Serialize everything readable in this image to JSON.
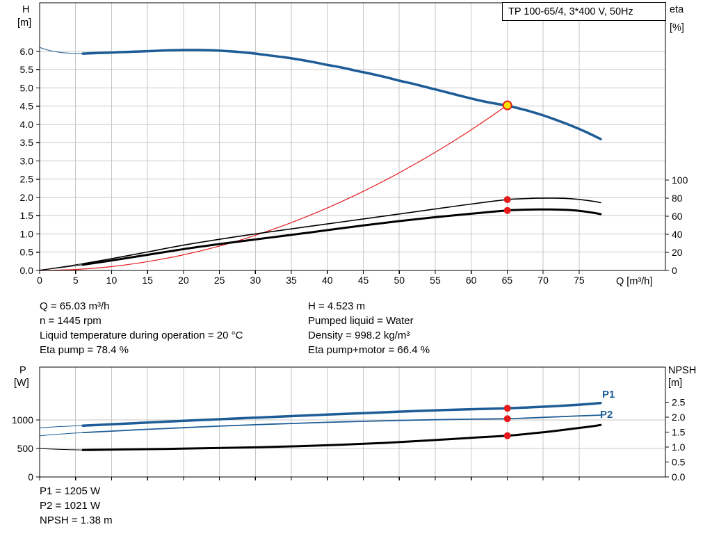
{
  "header": {
    "title": "TP 100-65/4, 3*400 V, 50Hz"
  },
  "colors": {
    "curve_blue": "#1d5c96",
    "curve_black": "#000000",
    "marker_red": "#e41a1c",
    "duty_yellow": "#ffe200",
    "grid": "#c6c6c6",
    "axis": "#000000"
  },
  "info_top": {
    "left": [
      "Q = 65.03 m³/h",
      "n = 1445 rpm",
      "Liquid temperature during operation = 20 °C",
      "Eta pump = 78.4 %"
    ],
    "right": [
      "H = 4.523 m",
      "Pumped liquid = Water",
      "Density = 998.2 kg/m³",
      "Eta pump+motor = 66.4 %"
    ]
  },
  "info_bottom": [
    "P1 = 1205 W",
    "P2 = 1021 W",
    "NPSH = 1.38 m"
  ],
  "chart_data": [
    {
      "id": "hq-eta-chart",
      "type": "line",
      "title": "TP 100-65/4, 3*400 V, 50Hz",
      "x_axis": {
        "label": "Q [m³/h]",
        "min": 0,
        "max": 87,
        "grid": true,
        "tick_values": [
          0,
          5,
          10,
          15,
          20,
          25,
          30,
          35,
          40,
          45,
          50,
          55,
          60,
          65,
          70,
          75
        ],
        "tick_labels": [
          "0",
          "5",
          "10",
          "15",
          "20",
          "25",
          "30",
          "35",
          "40",
          "45",
          "50",
          "55",
          "60",
          "65",
          "70",
          "75"
        ]
      },
      "y_left": {
        "title_lines": [
          "H",
          "[m]"
        ],
        "min": 0,
        "max": 7.333,
        "grid": true,
        "tick_values": [
          0,
          0.5,
          1,
          1.5,
          2,
          2.5,
          3,
          3.5,
          4,
          4.5,
          5,
          5.5,
          6
        ],
        "tick_labels": [
          "0.0",
          "0.5",
          "1.0",
          "1.5",
          "2.0",
          "2.5",
          "3.0",
          "3.5",
          "4.0",
          "4.5",
          "5.0",
          "5.5",
          "6.0"
        ]
      },
      "y_right": {
        "title_lines": [
          "eta",
          "[%]"
        ],
        "min": 0,
        "max": 296.2,
        "grid": false,
        "tick_values": [
          0,
          20,
          40,
          60,
          80,
          100
        ],
        "tick_labels": [
          "0",
          "20",
          "40",
          "60",
          "80",
          "100"
        ]
      },
      "series": [
        {
          "name": "head-lead-in",
          "axis": "left",
          "color": "#1d5c96",
          "width": 1,
          "points": [
            [
              0,
              6.11
            ],
            [
              1.5,
              6.02
            ],
            [
              3,
              5.97
            ],
            [
              4.5,
              5.95
            ],
            [
              6,
              5.94
            ]
          ]
        },
        {
          "name": "head",
          "axis": "left",
          "color": "#1d5c96",
          "width": 3.5,
          "points": [
            [
              6,
              5.94
            ],
            [
              8,
              5.955
            ],
            [
              10,
              5.97
            ],
            [
              12,
              5.985
            ],
            [
              14,
              6.0
            ],
            [
              16,
              6.015
            ],
            [
              18,
              6.03
            ],
            [
              20,
              6.04
            ],
            [
              22,
              6.04
            ],
            [
              24,
              6.03
            ],
            [
              26,
              6.01
            ],
            [
              28,
              5.98
            ],
            [
              30,
              5.94
            ],
            [
              32,
              5.89
            ],
            [
              34,
              5.84
            ],
            [
              36,
              5.78
            ],
            [
              38,
              5.71
            ],
            [
              40,
              5.63
            ],
            [
              42,
              5.56
            ],
            [
              44,
              5.47
            ],
            [
              46,
              5.39
            ],
            [
              48,
              5.3
            ],
            [
              50,
              5.2
            ],
            [
              52,
              5.11
            ],
            [
              54,
              5.01
            ],
            [
              56,
              4.91
            ],
            [
              58,
              4.81
            ],
            [
              60,
              4.71
            ],
            [
              62,
              4.62
            ],
            [
              64,
              4.55
            ],
            [
              65,
              4.52
            ],
            [
              66,
              4.47
            ],
            [
              68,
              4.37
            ],
            [
              70,
              4.25
            ],
            [
              72,
              4.11
            ],
            [
              74,
              3.96
            ],
            [
              76,
              3.79
            ],
            [
              78,
              3.6
            ]
          ]
        },
        {
          "name": "resistance",
          "axis": "left",
          "color": "#e41a1c",
          "width": 1.2,
          "points": [
            [
              0,
              0
            ],
            [
              5,
              0.027
            ],
            [
              10,
              0.107
            ],
            [
              15,
              0.241
            ],
            [
              20,
              0.428
            ],
            [
              25,
              0.669
            ],
            [
              30,
              0.963
            ],
            [
              35,
              1.311
            ],
            [
              40,
              1.713
            ],
            [
              45,
              2.168
            ],
            [
              50,
              2.676
            ],
            [
              55,
              3.238
            ],
            [
              60,
              3.854
            ],
            [
              65,
              4.523
            ]
          ]
        },
        {
          "name": "eta-pump-lead-in",
          "axis": "right",
          "color": "#000000",
          "width": 1,
          "points": [
            [
              0,
              0.3
            ],
            [
              2,
              2.6
            ],
            [
              4,
              5.0
            ],
            [
              6,
              7.5
            ]
          ]
        },
        {
          "name": "eta-pump",
          "axis": "right",
          "color": "#000000",
          "width": 1.6,
          "points": [
            [
              6,
              7.5
            ],
            [
              10,
              13
            ],
            [
              15,
              20.5
            ],
            [
              20,
              28
            ],
            [
              25,
              34.5
            ],
            [
              30,
              40.5
            ],
            [
              35,
              46
            ],
            [
              40,
              51.5
            ],
            [
              45,
              57
            ],
            [
              50,
              62.5
            ],
            [
              55,
              68
            ],
            [
              60,
              73.5
            ],
            [
              65,
              78.4
            ],
            [
              67,
              79.3
            ],
            [
              69,
              79.9
            ],
            [
              71,
              80.1
            ],
            [
              73,
              79.8
            ],
            [
              75,
              78.6
            ],
            [
              77,
              76.5
            ],
            [
              78,
              75
            ]
          ]
        },
        {
          "name": "eta-pump-motor-lead-in",
          "axis": "right",
          "color": "#000000",
          "width": 1,
          "points": [
            [
              0,
              0.3
            ],
            [
              2,
              2.2
            ],
            [
              4,
              4.2
            ],
            [
              6,
              6.3
            ]
          ]
        },
        {
          "name": "eta-pump-motor",
          "axis": "right",
          "color": "#000000",
          "width": 3,
          "points": [
            [
              6,
              6.3
            ],
            [
              10,
              11
            ],
            [
              15,
              17.3
            ],
            [
              20,
              23.6
            ],
            [
              25,
              29.2
            ],
            [
              30,
              34.3
            ],
            [
              35,
              39.4
            ],
            [
              40,
              44.6
            ],
            [
              45,
              49.8
            ],
            [
              50,
              54.6
            ],
            [
              55,
              58.9
            ],
            [
              60,
              62.8
            ],
            [
              65,
              66.4
            ],
            [
              67,
              67.1
            ],
            [
              69,
              67.5
            ],
            [
              71,
              67.5
            ],
            [
              73,
              67.1
            ],
            [
              75,
              66
            ],
            [
              77,
              63.8
            ],
            [
              78,
              62.3
            ]
          ]
        }
      ],
      "markers": [
        {
          "name": "duty-point",
          "axis": "left",
          "x": 65.03,
          "y": 4.523,
          "r": 6,
          "fill": "#ffe200",
          "stroke": "#e41a1c",
          "stroke_width": 2
        },
        {
          "name": "eta-pump-point",
          "axis": "right",
          "x": 65.03,
          "y": 78.4,
          "r": 5,
          "fill": "#e41a1c"
        },
        {
          "name": "eta-pump-motor-point",
          "axis": "right",
          "x": 65.03,
          "y": 66.4,
          "r": 5,
          "fill": "#e41a1c"
        }
      ]
    },
    {
      "id": "power-npsh-chart",
      "type": "line",
      "x_axis": {
        "label": "",
        "min": 0,
        "max": 87,
        "grid": true,
        "tick_values": [
          0,
          5,
          10,
          15,
          20,
          25,
          30,
          35,
          40,
          45,
          50,
          55,
          60,
          65,
          70,
          75
        ],
        "tick_labels": []
      },
      "y_left": {
        "title_lines": [
          "P",
          "[W]"
        ],
        "min": 0,
        "max": 1926.8,
        "grid": true,
        "tick_values": [
          0,
          500,
          1000
        ],
        "tick_labels": [
          "0",
          "500",
          "1000"
        ]
      },
      "y_right": {
        "title_lines": [
          "NPSH",
          "[m]"
        ],
        "min": 0,
        "max": 3.674,
        "grid": false,
        "tick_values": [
          0,
          0.5,
          1,
          1.5,
          2,
          2.5
        ],
        "tick_labels": [
          "0.0",
          "0.5",
          "1.0",
          "1.5",
          "2.0",
          "2.5"
        ]
      },
      "series": [
        {
          "name": "p1",
          "label": "P1",
          "axis": "left",
          "color": "#1d5c96",
          "width": 3.5,
          "points": [
            [
              6,
              900
            ],
            [
              10,
              924
            ],
            [
              15,
              954
            ],
            [
              20,
              984
            ],
            [
              25,
              1012
            ],
            [
              30,
              1040
            ],
            [
              35,
              1067
            ],
            [
              40,
              1094
            ],
            [
              45,
              1120
            ],
            [
              50,
              1145
            ],
            [
              55,
              1168
            ],
            [
              60,
              1188
            ],
            [
              65,
              1205
            ],
            [
              68,
              1220
            ],
            [
              71,
              1238
            ],
            [
              74,
              1258
            ],
            [
              76,
              1275
            ],
            [
              78,
              1298
            ]
          ]
        },
        {
          "name": "p2",
          "label": "P2",
          "axis": "left",
          "color": "#1d5c96",
          "width": 1.8,
          "points": [
            [
              6,
              778
            ],
            [
              10,
              804
            ],
            [
              15,
              835
            ],
            [
              20,
              864
            ],
            [
              25,
              891
            ],
            [
              30,
              916
            ],
            [
              35,
              938
            ],
            [
              40,
              958
            ],
            [
              45,
              976
            ],
            [
              50,
              991
            ],
            [
              55,
              1004
            ],
            [
              60,
              1014
            ],
            [
              65,
              1021
            ],
            [
              68,
              1034
            ],
            [
              71,
              1050
            ],
            [
              74,
              1066
            ],
            [
              76,
              1075
            ],
            [
              78,
              1085
            ]
          ]
        },
        {
          "name": "p1-lead-in",
          "axis": "left",
          "color": "#1d5c96",
          "width": 1,
          "points": [
            [
              0,
              862
            ],
            [
              2,
              878
            ],
            [
              4,
              890
            ],
            [
              6,
              900
            ]
          ]
        },
        {
          "name": "p2-lead-in",
          "axis": "left",
          "color": "#1d5c96",
          "width": 1,
          "points": [
            [
              0,
              722
            ],
            [
              2,
              744
            ],
            [
              4,
              762
            ],
            [
              6,
              778
            ]
          ]
        },
        {
          "name": "npsh-lead-in",
          "axis": "right",
          "color": "#000000",
          "width": 1,
          "points": [
            [
              0,
              0.95
            ],
            [
              2,
              0.93
            ],
            [
              4,
              0.915
            ],
            [
              6,
              0.9
            ]
          ]
        },
        {
          "name": "npsh",
          "axis": "right",
          "color": "#000000",
          "width": 3,
          "points": [
            [
              6,
              0.9
            ],
            [
              12,
              0.92
            ],
            [
              18,
              0.94
            ],
            [
              24,
              0.965
            ],
            [
              30,
              0.99
            ],
            [
              36,
              1.03
            ],
            [
              42,
              1.08
            ],
            [
              48,
              1.14
            ],
            [
              54,
              1.22
            ],
            [
              60,
              1.31
            ],
            [
              65,
              1.38
            ],
            [
              67,
              1.42
            ],
            [
              69,
              1.47
            ],
            [
              71,
              1.52
            ],
            [
              73,
              1.58
            ],
            [
              75,
              1.64
            ],
            [
              77,
              1.7
            ],
            [
              78,
              1.74
            ]
          ]
        }
      ],
      "markers": [
        {
          "name": "p1-point",
          "axis": "left",
          "x": 65.03,
          "y": 1205,
          "r": 5,
          "fill": "#e41a1c"
        },
        {
          "name": "p2-point",
          "axis": "left",
          "x": 65.03,
          "y": 1021,
          "r": 5,
          "fill": "#e41a1c"
        },
        {
          "name": "npsh-point",
          "axis": "right",
          "x": 65.03,
          "y": 1.38,
          "r": 5,
          "fill": "#e41a1c"
        }
      ]
    }
  ]
}
